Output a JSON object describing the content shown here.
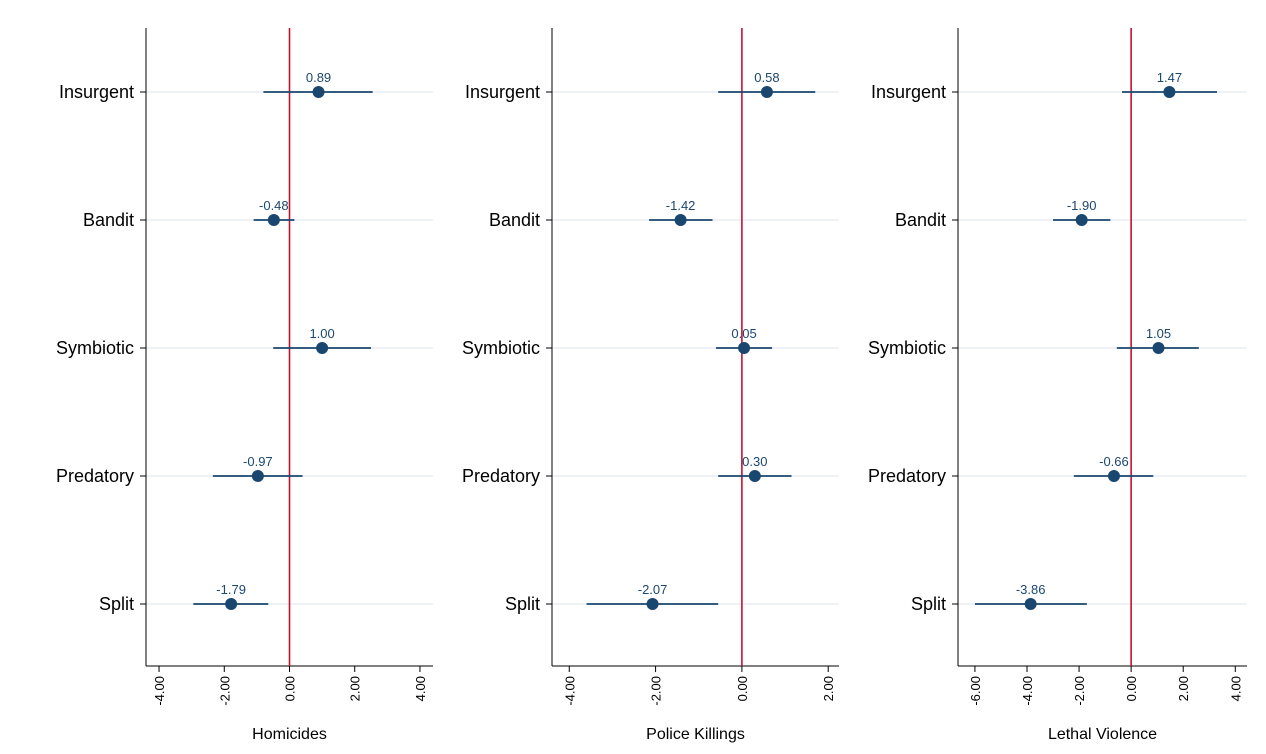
{
  "colors": {
    "point": "#1a476f",
    "reference_line": "#c8102e",
    "gridline": "#e8eef4",
    "axis": "#000000",
    "label_text": "#1a476f"
  },
  "chart_data": [
    {
      "type": "scatter",
      "xlabel": "Homicides",
      "categories": [
        "Insurgent",
        "Bandit",
        "Symbiotic",
        "Predatory",
        "Split"
      ],
      "values": [
        0.89,
        -0.48,
        1.0,
        -0.97,
        -1.79
      ],
      "value_labels": [
        "0.89",
        "-0.48",
        "1.00",
        "-0.97",
        "-1.79"
      ],
      "ci_low": [
        -0.8,
        -1.1,
        -0.5,
        -2.35,
        -2.95
      ],
      "ci_high": [
        2.55,
        0.15,
        2.5,
        0.4,
        -0.65
      ],
      "xlim": [
        -4.4,
        4.4
      ],
      "xticks": [
        -4,
        -2,
        0,
        2,
        4
      ],
      "xtick_labels": [
        "-4.00",
        "-2.00",
        "0.00",
        "2.00",
        "4.00"
      ],
      "reference_x": 0,
      "grid": true
    },
    {
      "type": "scatter",
      "xlabel": "Police Killings",
      "categories": [
        "Insurgent",
        "Bandit",
        "Symbiotic",
        "Predatory",
        "Split"
      ],
      "values": [
        0.58,
        -1.42,
        0.05,
        0.3,
        -2.07
      ],
      "value_labels": [
        "0.58",
        "-1.42",
        "0.05",
        "0.30",
        "-2.07"
      ],
      "ci_low": [
        -0.55,
        -2.15,
        -0.6,
        -0.55,
        -3.6
      ],
      "ci_high": [
        1.7,
        -0.68,
        0.7,
        1.15,
        -0.55
      ],
      "xlim": [
        -4.4,
        2.25
      ],
      "xticks": [
        -4,
        -2,
        0,
        2
      ],
      "xtick_labels": [
        "-4.00",
        "-2.00",
        "0.00",
        "2.00"
      ],
      "reference_x": 0,
      "grid": true
    },
    {
      "type": "scatter",
      "xlabel": "Lethal Violence",
      "categories": [
        "Insurgent",
        "Bandit",
        "Symbiotic",
        "Predatory",
        "Split"
      ],
      "values": [
        1.47,
        -1.9,
        1.05,
        -0.66,
        -3.86
      ],
      "value_labels": [
        "1.47",
        "-1.90",
        "1.05",
        "-0.66",
        "-3.86"
      ],
      "ci_low": [
        -0.35,
        -3.0,
        -0.55,
        -2.2,
        -6.0
      ],
      "ci_high": [
        3.3,
        -0.8,
        2.6,
        0.85,
        -1.7
      ],
      "xlim": [
        -6.65,
        4.45
      ],
      "xticks": [
        -6,
        -4,
        -2,
        0,
        2,
        4
      ],
      "xtick_labels": [
        "-6.00",
        "-4.00",
        "-2.00",
        "0.00",
        "2.00",
        "4.00"
      ],
      "reference_x": 0,
      "grid": true
    }
  ]
}
